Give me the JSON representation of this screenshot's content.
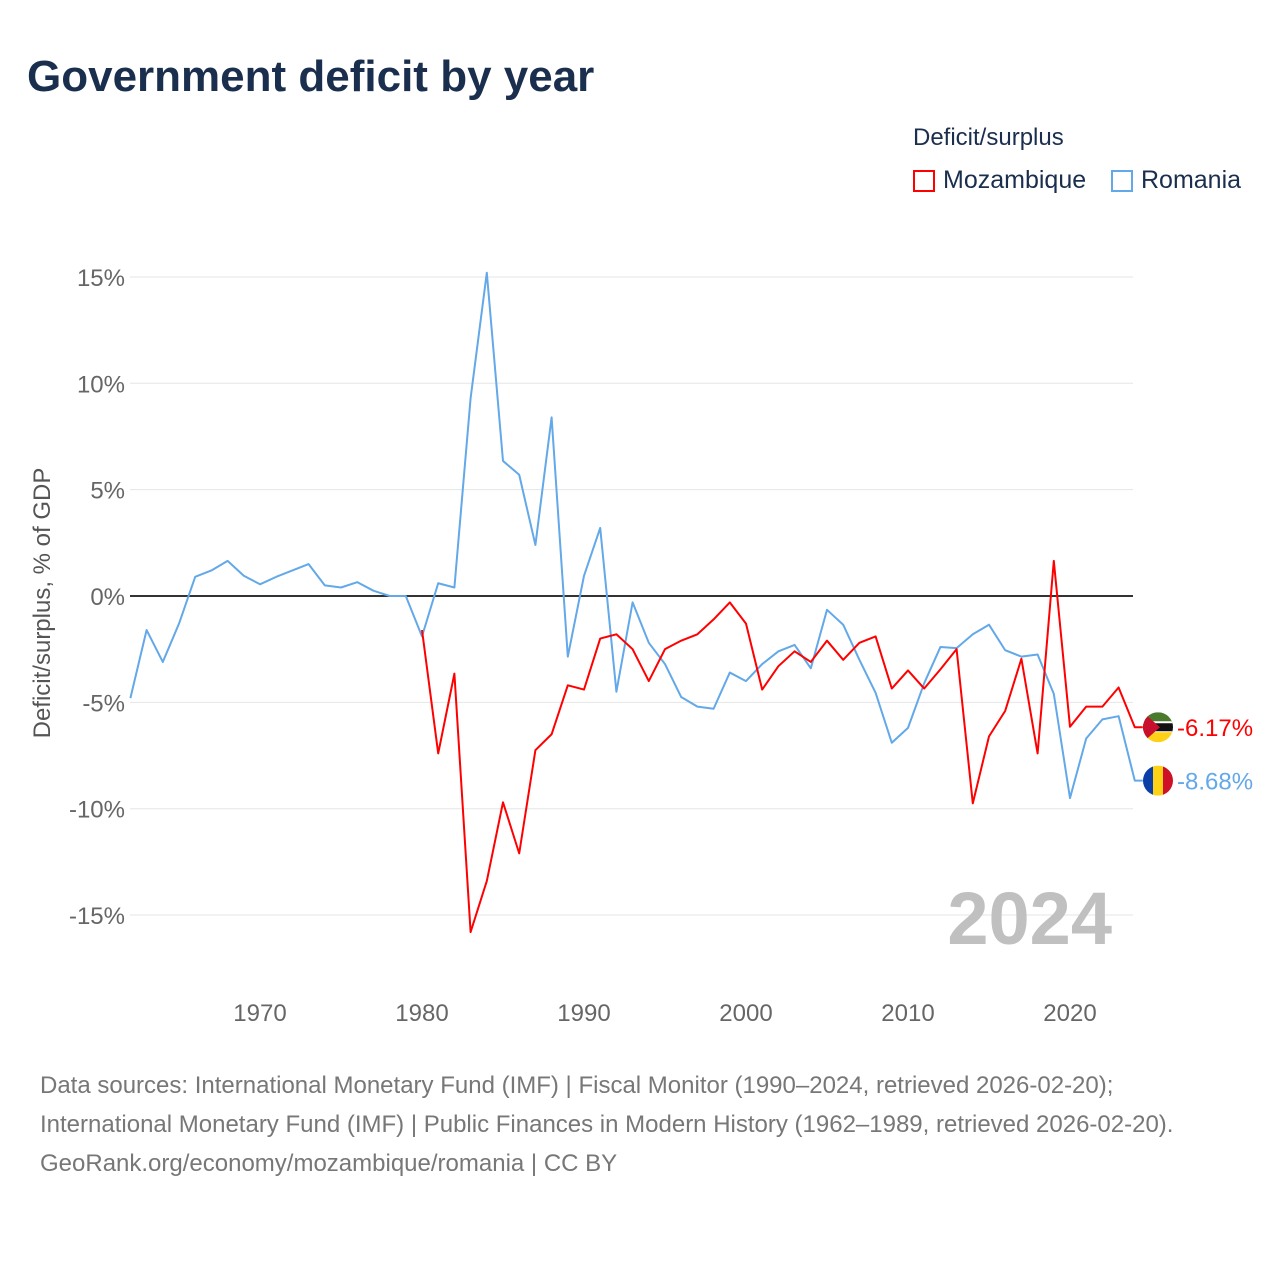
{
  "title": "Government deficit by year",
  "legend": {
    "title": "Deficit/surplus"
  },
  "year_label": "2024",
  "sources": "Data sources: International Monetary Fund (IMF) | Fiscal Monitor (1990–2024, retrieved 2026-02-20); International Monetary Fund (IMF) | Public Finances in Modern History (1962–1989, retrieved 2026-02-20).",
  "credit": "GeoRank.org/economy/mozambique/romania | CC BY",
  "chart_data": {
    "type": "line",
    "title": "Government deficit by year",
    "ylabel": "Deficit/surplus, % of GDP",
    "xlabel": "",
    "ylim": [
      -15,
      15
    ],
    "xlim": [
      1962,
      2024
    ],
    "yticks": [
      15,
      10,
      5,
      0,
      -5,
      -10,
      -15
    ],
    "ytick_labels": [
      "15%",
      "10%",
      "5%",
      "0%",
      "-5%",
      "-10%",
      "-15%"
    ],
    "xticks": [
      1970,
      1980,
      1990,
      2000,
      2010,
      2020
    ],
    "xtick_labels": [
      "1970",
      "1980",
      "1990",
      "2000",
      "2010",
      "2020"
    ],
    "legend_position": "top-right",
    "series": [
      {
        "name": "Mozambique",
        "color": "#ff0000",
        "end_label": "-6.17%",
        "start_year": 1980,
        "values": [
          -1.6,
          -7.4,
          -3.65,
          -15.8,
          -13.4,
          -9.7,
          -12.1,
          -7.25,
          -6.5,
          -4.2,
          -4.4,
          -2.0,
          -1.8,
          -2.5,
          -4.0,
          -2.5,
          -2.1,
          -1.8,
          -1.1,
          -0.3,
          -1.3,
          -4.4,
          -3.3,
          -2.6,
          -3.1,
          -2.1,
          -3.0,
          -2.2,
          -1.9,
          -4.35,
          -3.5,
          -4.35,
          -3.45,
          -2.5,
          -9.75,
          -6.6,
          -5.4,
          -2.95,
          -7.4,
          1.65,
          -6.15,
          -5.2,
          -5.2,
          -4.3,
          -6.17
        ]
      },
      {
        "name": "Romania",
        "color": "#63a8e8",
        "end_label": "-8.68%",
        "start_year": 1962,
        "values": [
          -4.8,
          -1.6,
          -3.1,
          -1.3,
          0.9,
          1.2,
          1.65,
          0.95,
          0.55,
          0.9,
          1.2,
          1.5,
          0.5,
          0.4,
          0.65,
          0.25,
          0,
          0,
          -1.9,
          0.6,
          0.4,
          9.3,
          15.2,
          6.35,
          5.7,
          2.4,
          8.4,
          -2.85,
          0.95,
          3.2,
          -4.5,
          -0.3,
          -2.2,
          -3.2,
          -4.75,
          -5.2,
          -5.3,
          -3.6,
          -4.0,
          -3.2,
          -2.6,
          -2.3,
          -3.4,
          -0.65,
          -1.35,
          -3.0,
          -4.55,
          -6.9,
          -6.2,
          -4.1,
          -2.4,
          -2.45,
          -1.8,
          -1.35,
          -2.55,
          -2.85,
          -2.75,
          -4.6,
          -9.5,
          -6.7,
          -5.8,
          -5.65,
          -8.68
        ]
      }
    ]
  }
}
